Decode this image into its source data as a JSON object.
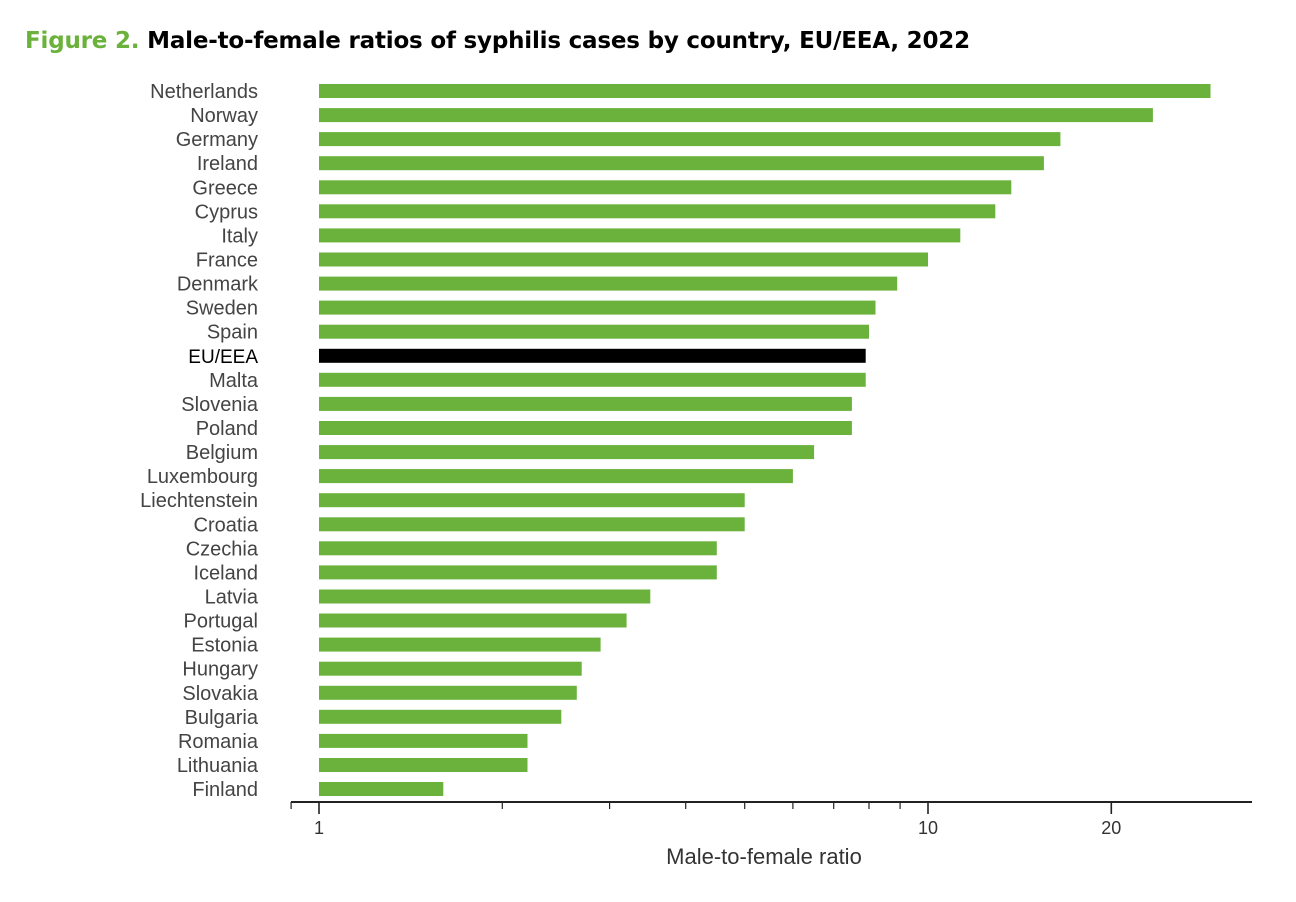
{
  "figure": {
    "number": "Figure 2.",
    "title": "Male-to-female ratios of syphilis cases by country, EU/EEA, 2022"
  },
  "colors": {
    "bar": "#6ab23b",
    "highlight_bar": "#000000",
    "title_accent": "#6ab23b"
  },
  "chart_data": {
    "type": "bar",
    "orientation": "horizontal",
    "x_scale": "log",
    "xlabel": "Male-to-female ratio",
    "ylabel": "",
    "xlim": [
      0.9,
      27
    ],
    "major_ticks": [
      1,
      10,
      20
    ],
    "highlight": "EU/EEA",
    "grid": false,
    "categories": [
      "Netherlands",
      "Norway",
      "Germany",
      "Ireland",
      "Greece",
      "Cyprus",
      "Italy",
      "France",
      "Denmark",
      "Sweden",
      "Spain",
      "EU/EEA",
      "Malta",
      "Slovenia",
      "Poland",
      "Belgium",
      "Luxembourg",
      "Liechtenstein",
      "Croatia",
      "Czechia",
      "Iceland",
      "Latvia",
      "Portugal",
      "Estonia",
      "Hungary",
      "Slovakia",
      "Bulgaria",
      "Romania",
      "Lithuania",
      "Finland"
    ],
    "values": [
      29.1,
      23.4,
      16.5,
      15.5,
      13.7,
      12.9,
      11.3,
      10.0,
      8.9,
      8.2,
      8.0,
      7.9,
      7.9,
      7.5,
      7.5,
      6.5,
      6.0,
      5.0,
      5.0,
      4.5,
      4.5,
      3.5,
      3.2,
      2.9,
      2.7,
      2.65,
      2.5,
      2.2,
      2.2,
      1.6
    ]
  }
}
